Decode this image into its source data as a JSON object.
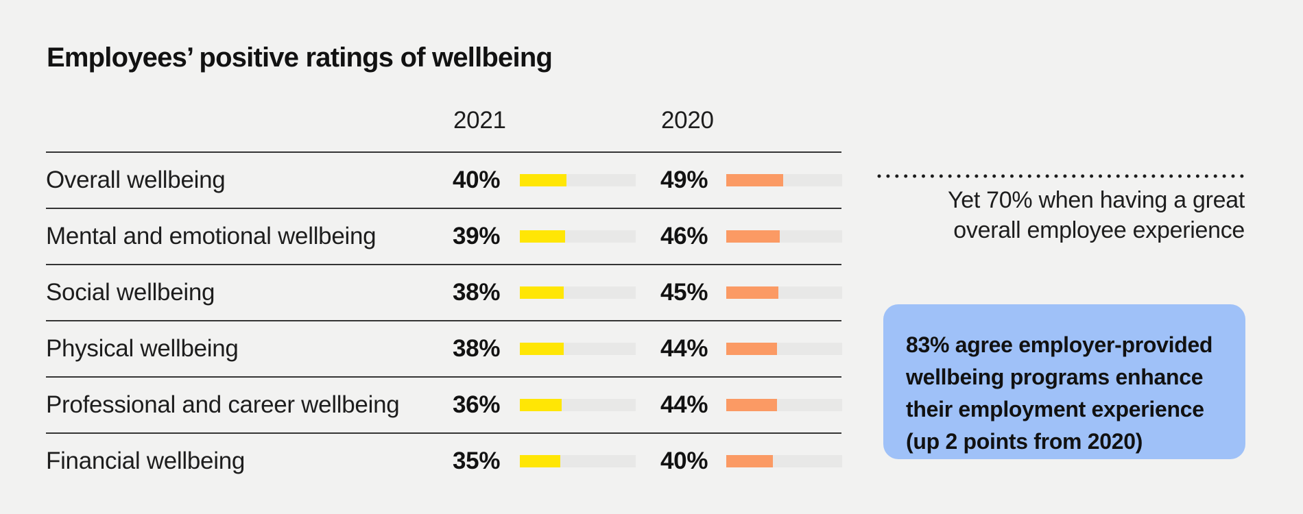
{
  "title": "Employees’ positive ratings of wellbeing",
  "columns": [
    "2021",
    "2020"
  ],
  "rows": [
    {
      "label": "Overall wellbeing",
      "v2021": "40%",
      "p2021": 40,
      "v2020": "49%",
      "p2020": 49
    },
    {
      "label": "Mental and emotional wellbeing",
      "v2021": "39%",
      "p2021": 39,
      "v2020": "46%",
      "p2020": 46
    },
    {
      "label": "Social wellbeing",
      "v2021": "38%",
      "p2021": 38,
      "v2020": "45%",
      "p2020": 45
    },
    {
      "label": "Physical wellbeing",
      "v2021": "38%",
      "p2021": 38,
      "v2020": "44%",
      "p2020": 44
    },
    {
      "label": "Professional and career wellbeing",
      "v2021": "36%",
      "p2021": 36,
      "v2020": "44%",
      "p2020": 44
    },
    {
      "label": "Financial wellbeing",
      "v2021": "35%",
      "p2021": 35,
      "v2020": "40%",
      "p2020": 40
    }
  ],
  "annotation": {
    "line1": "Yet 70% when having a great",
    "line2": "overall employee experience"
  },
  "callout": {
    "line1": "83% agree employer-provided",
    "line2": "wellbeing programs enhance",
    "line3": "their employment experience",
    "line4": "(up 2 points from 2020)"
  },
  "colors": {
    "background": "#f2f2f1",
    "bar_2021": "#ffe605",
    "bar_2020": "#fb9a64",
    "bar_track": "#e8e8e7",
    "callout_bg": "#9fc1f8",
    "text": "#1a1a1a",
    "rule": "#343434",
    "dots": "#1c1c1c"
  },
  "chart_data": {
    "type": "bar",
    "title": "Employees’ positive ratings of wellbeing",
    "categories": [
      "Overall wellbeing",
      "Mental and emotional wellbeing",
      "Social wellbeing",
      "Physical wellbeing",
      "Professional and career wellbeing",
      "Financial wellbeing"
    ],
    "series": [
      {
        "name": "2021",
        "values": [
          40,
          39,
          38,
          38,
          36,
          35
        ],
        "color": "#ffe605"
      },
      {
        "name": "2020",
        "values": [
          49,
          46,
          45,
          44,
          44,
          40
        ],
        "color": "#fb9a64"
      }
    ],
    "value_format": "percent",
    "xlim": [
      0,
      100
    ],
    "orientation": "horizontal",
    "grid": false,
    "legend_position": "column-headers",
    "annotations": [
      "Yet 70% when having a great overall employee experience",
      "83% agree employer-provided wellbeing programs enhance their employment experience (up 2 points from 2020)"
    ]
  }
}
